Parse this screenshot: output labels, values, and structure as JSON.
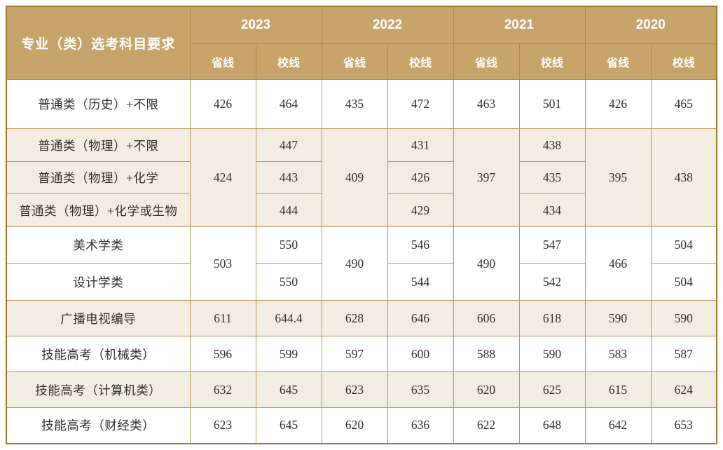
{
  "colors": {
    "header_bg": "#c7a46c",
    "header_text": "#ffffff",
    "inner_border": "#bd9659",
    "outer_border": "#a2762f",
    "row_stripe_beige": "#f2ede2",
    "row_white": "#ffffff",
    "body_text": "#32302d"
  },
  "table": {
    "category_header": "专业（类）选考科目要求",
    "years": [
      "2023",
      "2022",
      "2021",
      "2020"
    ],
    "sub_columns": [
      "省线",
      "校线"
    ],
    "rows": [
      {
        "label": "普通类（历史）+不限",
        "cells": [
          "426",
          "464",
          "435",
          "472",
          "463",
          "501",
          "426",
          "465"
        ]
      },
      {
        "label": "普通类（物理）+不限",
        "cells": [
          "424",
          "447",
          "409",
          "431",
          "397",
          "438",
          "395",
          "438"
        ]
      },
      {
        "label": "普通类（物理）+化学",
        "cells": [
          "443",
          "426",
          "435"
        ]
      },
      {
        "label": "普通类（物理）+化学或生物",
        "cells": [
          "444",
          "429",
          "434"
        ]
      },
      {
        "label": "美术学类",
        "cells": [
          "503",
          "550",
          "490",
          "546",
          "490",
          "547",
          "466",
          "504"
        ]
      },
      {
        "label": "设计学类",
        "cells": [
          "550",
          "544",
          "542",
          "504"
        ]
      },
      {
        "label": "广播电视编导",
        "cells": [
          "611",
          "644.4",
          "628",
          "646",
          "606",
          "618",
          "590",
          "590"
        ]
      },
      {
        "label": "技能高考（机械类）",
        "cells": [
          "596",
          "599",
          "597",
          "600",
          "588",
          "590",
          "583",
          "587"
        ]
      },
      {
        "label": "技能高考（计算机类）",
        "cells": [
          "632",
          "645",
          "623",
          "635",
          "620",
          "625",
          "615",
          "624"
        ]
      },
      {
        "label": "技能高考（财经类）",
        "cells": [
          "623",
          "645",
          "620",
          "636",
          "622",
          "648",
          "642",
          "653"
        ]
      }
    ]
  },
  "chart_data": {
    "type": "table",
    "title": "专业（类）选考科目要求 历年省线/校线分数表",
    "columns": [
      "专业（类）选考科目要求",
      "2023 省线",
      "2023 校线",
      "2022 省线",
      "2022 校线",
      "2021 省线",
      "2021 校线",
      "2020 省线",
      "2020 校线"
    ],
    "rows": [
      [
        "普通类（历史）+不限",
        426,
        464,
        435,
        472,
        463,
        501,
        426,
        465
      ],
      [
        "普通类（物理）+不限",
        424,
        447,
        409,
        431,
        397,
        438,
        395,
        438
      ],
      [
        "普通类（物理）+化学",
        424,
        443,
        409,
        426,
        397,
        435,
        395,
        438
      ],
      [
        "普通类（物理）+化学或生物",
        424,
        444,
        409,
        429,
        397,
        434,
        395,
        438
      ],
      [
        "美术学类",
        503,
        550,
        490,
        546,
        490,
        547,
        466,
        504
      ],
      [
        "设计学类",
        503,
        550,
        490,
        544,
        490,
        542,
        466,
        504
      ],
      [
        "广播电视编导",
        611,
        644.4,
        628,
        646,
        606,
        618,
        590,
        590
      ],
      [
        "技能高考（机械类）",
        596,
        599,
        597,
        600,
        588,
        590,
        583,
        587
      ],
      [
        "技能高考（计算机类）",
        632,
        645,
        623,
        635,
        620,
        625,
        615,
        624
      ],
      [
        "技能高考（财经类）",
        623,
        645,
        620,
        636,
        622,
        648,
        642,
        653
      ]
    ],
    "merged_regions": [
      {
        "column": "2023 省线",
        "row_span": [
          "普通类（物理）+不限",
          "普通类（物理）+化学或生物"
        ],
        "value": 424
      },
      {
        "column": "2022 省线",
        "row_span": [
          "普通类（物理）+不限",
          "普通类（物理）+化学或生物"
        ],
        "value": 409
      },
      {
        "column": "2021 省线",
        "row_span": [
          "普通类（物理）+不限",
          "普通类（物理）+化学或生物"
        ],
        "value": 397
      },
      {
        "column": "2020 省线",
        "row_span": [
          "普通类（物理）+不限",
          "普通类（物理）+化学或生物"
        ],
        "value": 395
      },
      {
        "column": "2020 校线",
        "row_span": [
          "普通类（物理）+不限",
          "普通类（物理）+化学或生物"
        ],
        "value": 438
      },
      {
        "column": "2023 省线",
        "row_span": [
          "美术学类",
          "设计学类"
        ],
        "value": 503
      },
      {
        "column": "2022 省线",
        "row_span": [
          "美术学类",
          "设计学类"
        ],
        "value": 490
      },
      {
        "column": "2021 省线",
        "row_span": [
          "美术学类",
          "设计学类"
        ],
        "value": 490
      },
      {
        "column": "2020 省线",
        "row_span": [
          "美术学类",
          "设计学类"
        ],
        "value": 466
      }
    ],
    "layout_hints": {
      "grid": true,
      "header_rows": 2,
      "stripe_pattern": "alternating row groups beige/white"
    }
  }
}
